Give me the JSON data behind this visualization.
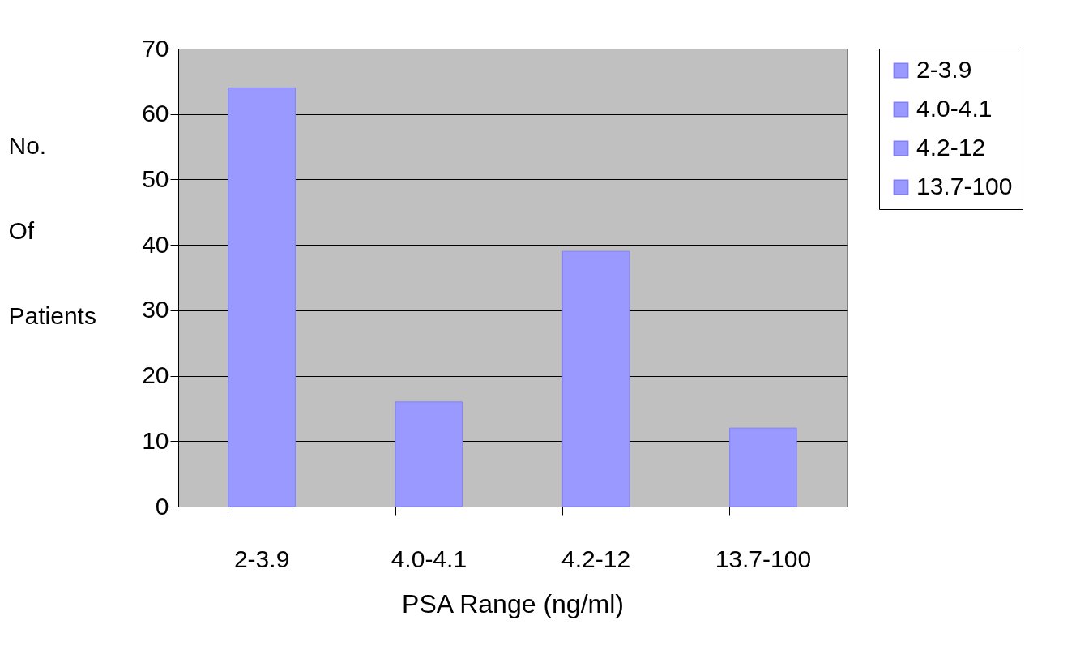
{
  "chart_data": {
    "type": "bar",
    "xlabel": "PSA Range (ng/ml)",
    "ylabel": "No. Of Patients",
    "categories": [
      "2-3.9",
      "4.0-4.1",
      "4.2-12",
      "13.7-100"
    ],
    "series": [
      {
        "name": "2-3.9",
        "color": "#9999ff",
        "values": [
          64,
          null,
          null,
          null
        ]
      },
      {
        "name": "4.0-4.1",
        "color": "#9999ff",
        "values": [
          null,
          16,
          null,
          null
        ]
      },
      {
        "name": "4.2-12",
        "color": "#9999ff",
        "values": [
          null,
          null,
          39,
          null
        ]
      },
      {
        "name": "13.7-100",
        "color": "#9999ff",
        "values": [
          null,
          null,
          null,
          12
        ]
      }
    ],
    "ylim": [
      0,
      70
    ],
    "yticks": [
      0,
      10,
      20,
      30,
      40,
      50,
      60,
      70
    ],
    "grid": "y",
    "legend": "right"
  }
}
